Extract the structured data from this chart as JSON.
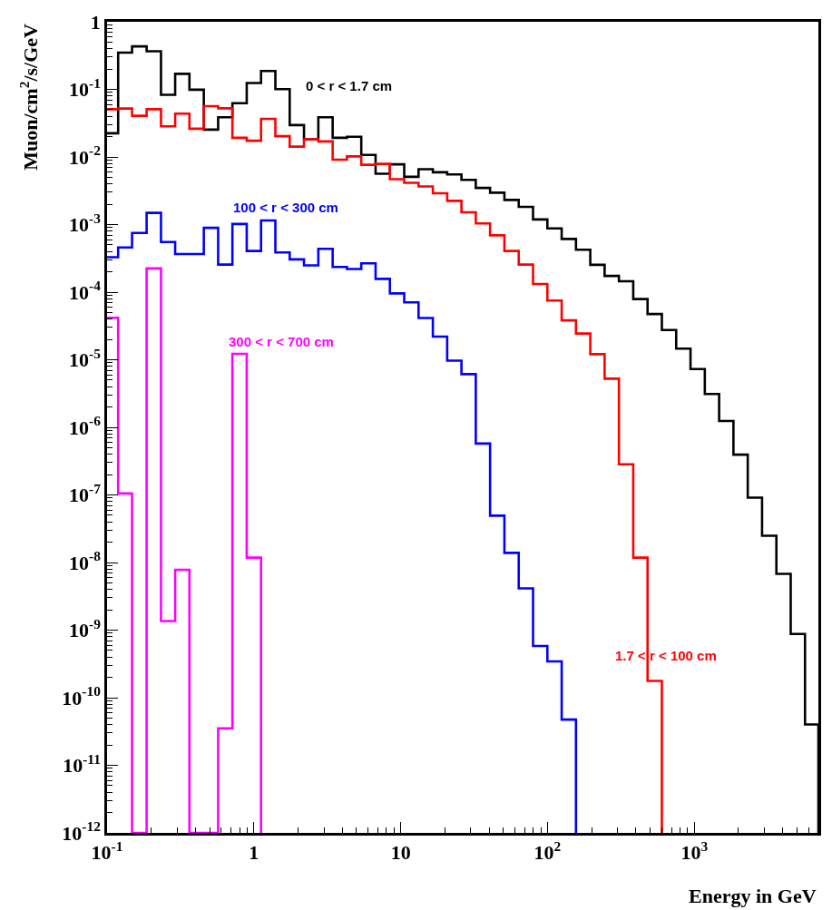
{
  "chart_data": {
    "type": "histogram",
    "xlabel": "Energy in GeV",
    "ylabel": "Muon/cm$^{2}$/s/GeV",
    "log": "xy",
    "legend": false,
    "bins": [
      0.1,
      0.119,
      0.148,
      0.186,
      0.233,
      0.291,
      0.364,
      0.456,
      0.571,
      0.714,
      0.894,
      1.119,
      1.401,
      1.754,
      2.195,
      2.748,
      3.44,
      4.305,
      5.389,
      6.745,
      8.443,
      10.57,
      13.23,
      16.56,
      20.73,
      25.94,
      32.47,
      40.64,
      50.87,
      63.68,
      79.71,
      99.77,
      124.9,
      156.3,
      195.6,
      244.9,
      306.5,
      383.7,
      480.3,
      601.2,
      752.5,
      941.9,
      1179,
      1476,
      1847,
      2312,
      2894,
      3622,
      4534,
      5675,
      7000
    ],
    "xlim": [
      0.1,
      7000
    ],
    "ylim": [
      1e-12,
      1
    ],
    "xticks": [
      {
        "value": 0.1,
        "label": "10$^{-1}$"
      },
      1,
      10,
      {
        "value": 100,
        "label": "10$^{2}$"
      },
      {
        "value": 1000,
        "label": "10$^{3}$"
      }
    ],
    "yticks": [
      {
        "value": 1e-12,
        "label": "10$^{-12}$"
      },
      {
        "value": 1e-11,
        "label": "10$^{-11}$"
      },
      {
        "value": 1e-10,
        "label": "10$^{-10}$"
      },
      {
        "value": 1e-09,
        "label": "10$^{-9}$"
      },
      {
        "value": 1e-08,
        "label": "10$^{-8}$"
      },
      {
        "value": 1e-07,
        "label": "10$^{-7}$"
      },
      {
        "value": 1e-06,
        "label": "10$^{-6}$"
      },
      {
        "value": 1e-05,
        "label": "10$^{-5}$"
      },
      {
        "value": 0.0001,
        "label": "10$^{-4}$"
      },
      {
        "value": 0.001,
        "label": "10$^{-3}$"
      },
      {
        "value": 0.01,
        "label": "10$^{-2}$"
      },
      {
        "value": 0.1,
        "label": "10$^{-1}$"
      },
      1
    ],
    "series": [
      {
        "name": "0 < r < 1.7 cm",
        "color": "#000000",
        "values": [
          0.0224,
          0.349,
          0.433,
          0.366,
          0.0832,
          0.17,
          0.099,
          0.0254,
          0.0386,
          0.0625,
          0.124,
          0.187,
          0.101,
          0.0296,
          0.0183,
          0.0386,
          0.0192,
          0.0199,
          0.0107,
          0.00564,
          0.00778,
          0.00509,
          0.00658,
          0.00593,
          0.00552,
          0.00459,
          0.00348,
          0.00296,
          0.00231,
          0.00183,
          0.00119,
          0.000875,
          0.000612,
          0.000424,
          0.000254,
          0.000174,
          0.000145,
          7.91e-05,
          4.74e-05,
          2.75e-05,
          1.46e-05,
          7.28e-06,
          3.11e-06,
          1.24e-06,
          3.94e-07,
          9.12e-08,
          2.49e-08,
          6.78e-09,
          8.75e-10,
          4.02e-11
        ]
      },
      {
        "name": "1.7 < r < 100 cm",
        "color": "#ff0000",
        "bins": [
          0.1,
          0.119,
          0.148,
          0.186,
          0.233,
          0.291,
          0.364,
          0.456,
          0.571,
          0.714,
          0.894,
          1.119,
          1.401,
          1.754,
          2.195,
          2.748,
          3.44,
          4.305,
          5.389,
          6.745,
          8.443,
          10.57,
          13.23,
          16.56,
          20.73,
          25.94,
          32.47,
          40.64,
          50.87,
          63.68,
          79.71,
          99.77,
          124.9,
          156.3,
          195.6,
          244.9,
          306.5,
          383.7,
          480.3,
          601.2
        ],
        "values": [
          0.0509,
          0.052,
          0.0406,
          0.0509,
          0.0284,
          0.0437,
          0.0262,
          0.0564,
          0.0525,
          0.0192,
          0.0174,
          0.0366,
          0.0203,
          0.0142,
          0.0183,
          0.017,
          0.00912,
          0.0102,
          0.00766,
          0.00791,
          0.00469,
          0.00415,
          0.00366,
          0.0029,
          0.00224,
          0.00152,
          0.00104,
          0.000692,
          0.000406,
          0.000256,
          0.000132,
          7.52e-05,
          3.82e-05,
          2.44e-05,
          1.21e-05,
          5.25e-06,
          2.84e-07,
          1.18e-08,
          1.77e-10
        ]
      },
      {
        "name": "100 < r < 300 cm",
        "color": "#0000ff",
        "bins": [
          0.1,
          0.119,
          0.148,
          0.186,
          0.233,
          0.291,
          0.364,
          0.456,
          0.571,
          0.714,
          0.894,
          1.119,
          1.401,
          1.754,
          2.195,
          2.748,
          3.44,
          4.305,
          5.389,
          6.745,
          8.443,
          10.57,
          13.23,
          16.56,
          20.73,
          25.94,
          32.47,
          40.64,
          50.87,
          63.68,
          79.71,
          99.77,
          124.9,
          156.3
        ],
        "values": [
          0.000328,
          0.000459,
          0.000752,
          0.00149,
          0.000552,
          0.000366,
          0.000366,
          0.000893,
          0.000256,
          0.00102,
          0.000406,
          0.00115,
          0.000386,
          0.000305,
          0.000249,
          0.000437,
          0.000236,
          0.00022,
          0.000267,
          0.000157,
          9.59e-05,
          7.06e-05,
          4.15e-05,
          2.2e-05,
          9.7e-06,
          6.12e-06,
          5.75e-07,
          4.93e-08,
          1.39e-08,
          4.15e-09,
          5.81e-10,
          3.45e-10,
          4.74e-11
        ]
      },
      {
        "name": "300 < r < 700 cm",
        "color": "#ff00ff",
        "bins": [
          0.1,
          0.119,
          0.148,
          0.186,
          0.233,
          0.291,
          0.364,
          0.571,
          0.714,
          0.894,
          1.119
        ],
        "values": [
          4.17e-05,
          1.05e-07,
          null,
          0.000224,
          1.36e-09,
          7.82e-09,
          null,
          3.52e-11,
          1.22e-05,
          1.18e-08
        ]
      }
    ]
  }
}
